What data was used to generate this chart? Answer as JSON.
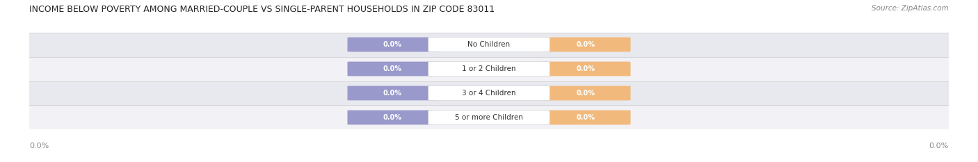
{
  "title": "INCOME BELOW POVERTY AMONG MARRIED-COUPLE VS SINGLE-PARENT HOUSEHOLDS IN ZIP CODE 83011",
  "source_text": "Source: ZipAtlas.com",
  "categories": [
    "No Children",
    "1 or 2 Children",
    "3 or 4 Children",
    "5 or more Children"
  ],
  "married_values": [
    0.0,
    0.0,
    0.0,
    0.0
  ],
  "single_values": [
    0.0,
    0.0,
    0.0,
    0.0
  ],
  "married_color": "#9999cc",
  "single_color": "#f2b97c",
  "row_bg_color_light": "#f2f2f6",
  "row_bg_color_dark": "#e8e8ef",
  "title_fontsize": 9.0,
  "label_fontsize": 7.5,
  "value_fontsize": 7.0,
  "legend_fontsize": 8,
  "source_fontsize": 7.5,
  "background_color": "#ffffff",
  "axis_label_color": "#888888",
  "text_color": "#333333",
  "white_box_color": "#ffffff",
  "separator_color": "#cccccc"
}
